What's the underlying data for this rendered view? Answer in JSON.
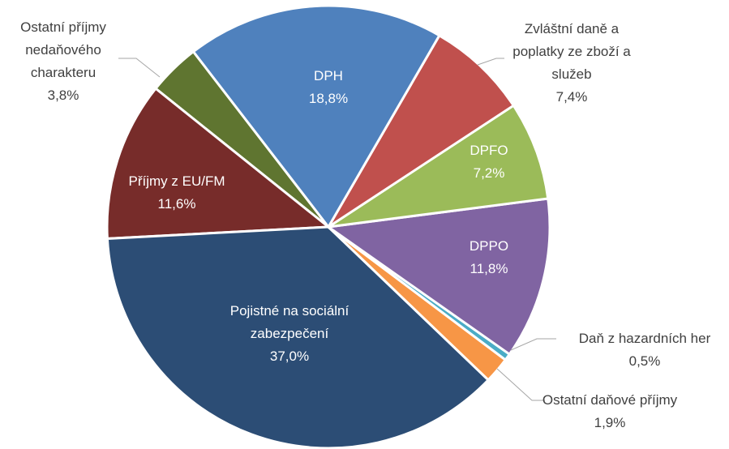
{
  "chart_data": {
    "type": "pie",
    "categories": [
      "DPH",
      "Zvláštní daně a poplatky ze zboží a služeb",
      "DPFO",
      "DPPO",
      "Daň z hazardních her",
      "Ostatní daňové příjmy",
      "Pojistné na sociální zabezpečení",
      "Příjmy z EU/FM",
      "Ostatní příjmy nedaňového charakteru"
    ],
    "values": [
      18.8,
      7.4,
      7.2,
      11.8,
      0.5,
      1.9,
      37.0,
      11.6,
      3.8
    ],
    "value_labels": [
      "18,8%",
      "7,4%",
      "7,2%",
      "11,8%",
      "0,5%",
      "1,9%",
      "37,0%",
      "11,6%",
      "3,8%"
    ],
    "colors": [
      "#4f81bd",
      "#c0504d",
      "#9bbb59",
      "#8064a2",
      "#4bacc6",
      "#f79646",
      "#2c4d75",
      "#772c2a",
      "#5f7530"
    ]
  }
}
